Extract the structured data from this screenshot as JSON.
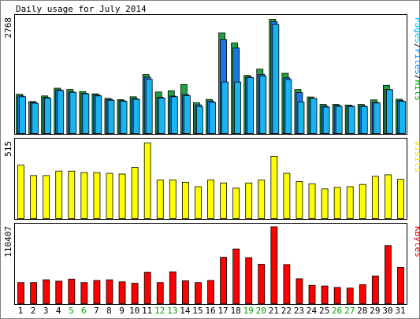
{
  "chart_data": {
    "type": "bar",
    "title": "Daily usage for July 2014",
    "categories": [
      "1",
      "2",
      "3",
      "4",
      "5",
      "6",
      "7",
      "8",
      "9",
      "10",
      "11",
      "12",
      "13",
      "14",
      "15",
      "16",
      "17",
      "18",
      "19",
      "20",
      "21",
      "22",
      "23",
      "24",
      "25",
      "26",
      "27",
      "28",
      "29",
      "30",
      "31"
    ],
    "weekend_days": [
      "5",
      "6",
      "12",
      "13",
      "19",
      "20",
      "26",
      "27"
    ],
    "panels": [
      {
        "id": "hits-panel",
        "max_label": "2768",
        "legend_parts": [
          {
            "text": "Pages",
            "color": "#00c0ff"
          },
          {
            "text": "/",
            "color": "#000000"
          },
          {
            "text": "Files",
            "color": "#0080ff"
          },
          {
            "text": "/",
            "color": "#000000"
          },
          {
            "text": "Hits",
            "color": "#00a000"
          }
        ],
        "ylim": [
          0,
          2768
        ],
        "series": [
          {
            "name": "Hits",
            "color": "#20a040",
            "values": [
              945,
              770,
              905,
              1090,
              1060,
              1010,
              955,
              845,
              815,
              885,
              1420,
              1000,
              1030,
              1180,
              740,
              820,
              2420,
              2180,
              1400,
              1550,
              2750,
              1450,
              1060,
              880,
              700,
              700,
              685,
              700,
              810,
              1160,
              825
            ]
          },
          {
            "name": "Files",
            "color": "#1a78e6",
            "values": [
              905,
              750,
              870,
              1050,
              1000,
              970,
              925,
              820,
              790,
              840,
              1355,
              875,
              900,
              940,
              690,
              780,
              2260,
              2060,
              1360,
              1425,
              2690,
              1340,
              985,
              850,
              660,
              675,
              665,
              665,
              750,
              1060,
              790
            ]
          },
          {
            "name": "Pages",
            "color": "#1ab4f0",
            "values": [
              885,
              730,
              850,
              1035,
              990,
              955,
              905,
              800,
              775,
              825,
              1305,
              855,
              885,
              910,
              650,
              750,
              1240,
              1240,
              1345,
              1385,
              2625,
              1300,
              755,
              845,
              635,
              655,
              650,
              650,
              735,
              1055,
              775
            ]
          }
        ]
      },
      {
        "id": "visits-panel",
        "max_label": "515",
        "legend_parts": [
          {
            "text": "Visits",
            "color": "#e8e000"
          }
        ],
        "ylim": [
          0,
          515
        ],
        "series": [
          {
            "name": "Visits",
            "color": "#ffff00",
            "values": [
              360,
              290,
              290,
              320,
              320,
              310,
              310,
              305,
              300,
              345,
              510,
              260,
              260,
              245,
              215,
              260,
              240,
              205,
              240,
              260,
              420,
              305,
              250,
              235,
              200,
              210,
              215,
              230,
              285,
              295,
              265
            ]
          }
        ]
      },
      {
        "id": "kbytes-panel",
        "max_label": "110407",
        "legend_parts": [
          {
            "text": "KBytes",
            "color": "#e00000"
          }
        ],
        "ylim": [
          0,
          110407
        ],
        "series": [
          {
            "name": "KBytes",
            "color": "#ff0000",
            "values": [
              30500,
              30500,
              34500,
              32500,
              35500,
              30500,
              33500,
              34500,
              31500,
              29500,
              45500,
              30500,
              46000,
              33000,
              30500,
              33500,
              67000,
              79000,
              66500,
              57000,
              111000,
              56500,
              36000,
              26500,
              25500,
              23500,
              22500,
              27500,
              40000,
              84000,
              52500
            ]
          }
        ]
      }
    ]
  }
}
